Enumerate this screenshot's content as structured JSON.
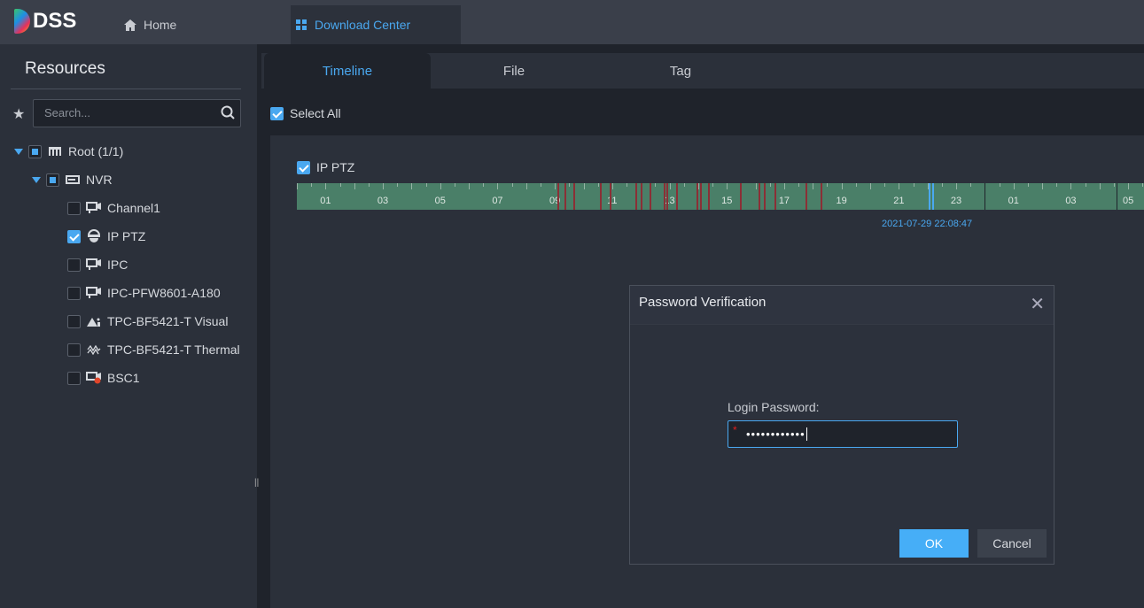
{
  "app": {
    "logo": "DSS",
    "tabs": [
      {
        "label": "Home",
        "icon": "home-icon"
      },
      {
        "label": "Download Center",
        "icon": "grid-icon",
        "active": true
      }
    ]
  },
  "sidebar": {
    "title": "Resources",
    "search_placeholder": "Search...",
    "tree": [
      {
        "label": "Root (1/1)",
        "level": 0,
        "state": "partial",
        "expanded": true,
        "icon": "org-icon"
      },
      {
        "label": "NVR",
        "level": 1,
        "state": "partial",
        "expanded": true,
        "icon": "nvr-icon"
      },
      {
        "label": "Channel1",
        "level": 2,
        "state": "unchecked",
        "icon": "camera-icon"
      },
      {
        "label": "IP PTZ",
        "level": 2,
        "state": "checked",
        "icon": "ptz-dome-icon"
      },
      {
        "label": "IPC",
        "level": 2,
        "state": "unchecked",
        "icon": "camera-icon"
      },
      {
        "label": "IPC-PFW8601-A180",
        "level": 2,
        "state": "unchecked",
        "icon": "camera-icon"
      },
      {
        "label": "TPC-BF5421-T Visual",
        "level": 2,
        "state": "unchecked",
        "icon": "visual-icon"
      },
      {
        "label": "TPC-BF5421-T Thermal",
        "level": 2,
        "state": "unchecked",
        "icon": "thermal-icon"
      },
      {
        "label": "BSC1",
        "level": 2,
        "state": "unchecked",
        "icon": "camera-offline-icon"
      }
    ]
  },
  "main": {
    "tabs": [
      "Timeline",
      "File",
      "Tag"
    ],
    "active_tab": "Timeline",
    "select_all": "Select All",
    "channel": {
      "label": "IP PTZ",
      "checked": true
    },
    "timeline": {
      "hour_labels": [
        "01",
        "03",
        "05",
        "07",
        "09",
        "11",
        "13",
        "15",
        "17",
        "19",
        "21",
        "23",
        "01",
        "03",
        "05"
      ],
      "cursor_time": "2021-07-29 22:08:47",
      "alarm_marks": [
        "09:06",
        "09:20",
        "09:38",
        "10:34",
        "10:54",
        "11:48",
        "11:59",
        "12:18",
        "12:48",
        "12:54",
        "13:14",
        "13:56",
        "14:03",
        "14:21",
        "15:27",
        "16:06",
        "16:18",
        "16:40",
        "17:45",
        "18:16"
      ],
      "colors": {
        "record": "#4a7f68",
        "alarm": "#8b2f36",
        "cursor": "#4aa8f0"
      }
    }
  },
  "dialog": {
    "title": "Password Verification",
    "field_label": "Login Password:",
    "password_value": "••••••••••••",
    "ok": "OK",
    "cancel": "Cancel"
  },
  "colors": {
    "accent": "#4aa8f0"
  }
}
